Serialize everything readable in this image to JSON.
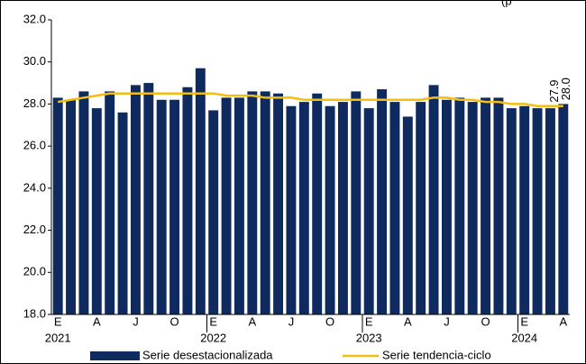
{
  "chart_data": {
    "type": "bar_line",
    "annotation": "(p",
    "categories": [
      "E",
      null,
      null,
      "A",
      null,
      null,
      "J",
      null,
      null,
      "O",
      null,
      null,
      "E",
      null,
      null,
      "A",
      null,
      null,
      "J",
      null,
      null,
      "O",
      null,
      null,
      "E",
      null,
      null,
      "A",
      null,
      null,
      "J",
      null,
      null,
      "O",
      null,
      null,
      "E",
      null,
      null,
      "A"
    ],
    "years": [
      "2021",
      null,
      null,
      null,
      null,
      null,
      null,
      null,
      null,
      null,
      null,
      null,
      "2022",
      null,
      null,
      null,
      null,
      null,
      null,
      null,
      null,
      null,
      null,
      null,
      "2023",
      null,
      null,
      null,
      null,
      null,
      null,
      null,
      null,
      null,
      null,
      null,
      "2024",
      null,
      null,
      null
    ],
    "series": [
      {
        "name": "Serie desestacionalizada",
        "kind": "bar",
        "color": "#0f2a5e",
        "values": [
          28.3,
          28.2,
          28.6,
          27.8,
          28.6,
          27.6,
          28.9,
          29.0,
          28.2,
          28.2,
          28.8,
          29.7,
          27.7,
          28.3,
          28.3,
          28.6,
          28.6,
          28.5,
          27.9,
          28.1,
          28.5,
          27.9,
          28.1,
          28.6,
          27.8,
          28.7,
          28.1,
          27.4,
          28.1,
          28.9,
          28.2,
          28.3,
          28.1,
          28.3,
          28.3,
          27.8,
          27.9,
          27.8,
          27.8,
          28.0
        ],
        "value_labels": [
          null,
          null,
          null,
          null,
          null,
          null,
          null,
          null,
          null,
          null,
          null,
          null,
          null,
          null,
          null,
          null,
          null,
          null,
          null,
          null,
          null,
          null,
          null,
          null,
          null,
          null,
          null,
          null,
          null,
          null,
          null,
          null,
          null,
          null,
          null,
          null,
          null,
          null,
          null,
          "28.0"
        ]
      },
      {
        "name": "Serie tendencia-ciclo",
        "kind": "line",
        "color": "#f2bf10",
        "values": [
          28.1,
          28.2,
          28.3,
          28.4,
          28.5,
          28.5,
          28.5,
          28.5,
          28.5,
          28.5,
          28.5,
          28.5,
          28.5,
          28.4,
          28.4,
          28.4,
          28.3,
          28.3,
          28.3,
          28.2,
          28.2,
          28.2,
          28.2,
          28.2,
          28.2,
          28.2,
          28.2,
          28.2,
          28.2,
          28.3,
          28.3,
          28.2,
          28.2,
          28.1,
          28.1,
          28.0,
          28.0,
          27.9,
          27.9,
          27.9
        ],
        "value_labels": [
          null,
          null,
          null,
          null,
          null,
          null,
          null,
          null,
          null,
          null,
          null,
          null,
          null,
          null,
          null,
          null,
          null,
          null,
          null,
          null,
          null,
          null,
          null,
          null,
          null,
          null,
          null,
          null,
          null,
          null,
          null,
          null,
          null,
          null,
          null,
          null,
          null,
          null,
          null,
          "27.9"
        ]
      }
    ],
    "ylim": [
      18,
      32
    ],
    "yticks": [
      {
        "value": 18,
        "label": "18.0"
      },
      {
        "value": 20,
        "label": "20.0"
      },
      {
        "value": 22,
        "label": "22.0"
      },
      {
        "value": 24,
        "label": "24.0"
      },
      {
        "value": 26,
        "label": "26.0"
      },
      {
        "value": 28,
        "label": "28.0"
      },
      {
        "value": 30,
        "label": "30.0"
      },
      {
        "value": 32,
        "label": "32.0"
      }
    ],
    "grid": false
  }
}
